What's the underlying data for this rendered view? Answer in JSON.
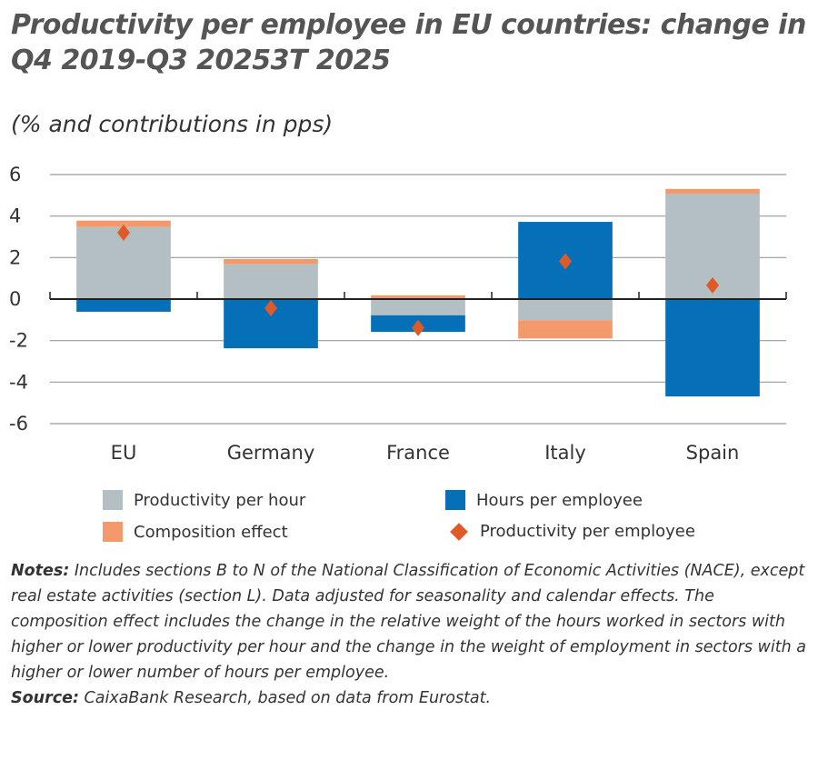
{
  "chart_data": {
    "type": "bar",
    "stacked": true,
    "title": "Productivity per employee in EU countries: change in Q4 2019-Q3 20253T 2025",
    "subtitle": "(% and contributions in pps)",
    "categories": [
      "EU",
      "Germany",
      "France",
      "Italy",
      "Spain"
    ],
    "ylim": [
      -6,
      6
    ],
    "yticks": [
      6,
      4,
      2,
      0,
      -2,
      -4,
      -6
    ],
    "grid": true,
    "legend_position": "bottom",
    "series": [
      {
        "name": "Productivity per hour",
        "type": "bar",
        "color": "#b3bfc2",
        "values": [
          3.47,
          1.68,
          -0.78,
          -1.02,
          5.08
        ]
      },
      {
        "name": "Hours per employee",
        "type": "bar",
        "color": "#0570b8",
        "values": [
          -0.61,
          -2.37,
          -0.8,
          3.72,
          -4.69
        ]
      },
      {
        "name": "Composition effect",
        "type": "bar",
        "color": "#f39a6d",
        "values": [
          0.31,
          0.25,
          0.18,
          -0.88,
          0.23
        ]
      },
      {
        "name": "Productivity per employee",
        "type": "scatter",
        "marker": "diamond",
        "color": "#e05a28",
        "values": [
          3.2,
          -0.44,
          -1.39,
          1.82,
          0.66
        ]
      }
    ]
  },
  "notes": {
    "notes_label": "Notes:",
    "notes_text": " Includes sections B to N of the National Classification of Economic Activities (NACE), except real estate activities (section L). Data adjusted for seasonality and calendar effects. The composition effect includes the change in the relative weight of the hours worked in sectors with higher or lower productivity per hour and the change in the weight of employment in sectors with a higher or lower number of hours per employee.",
    "source_label": "Source:",
    "source_text": " CaixaBank Research, based on data from Eurostat."
  }
}
